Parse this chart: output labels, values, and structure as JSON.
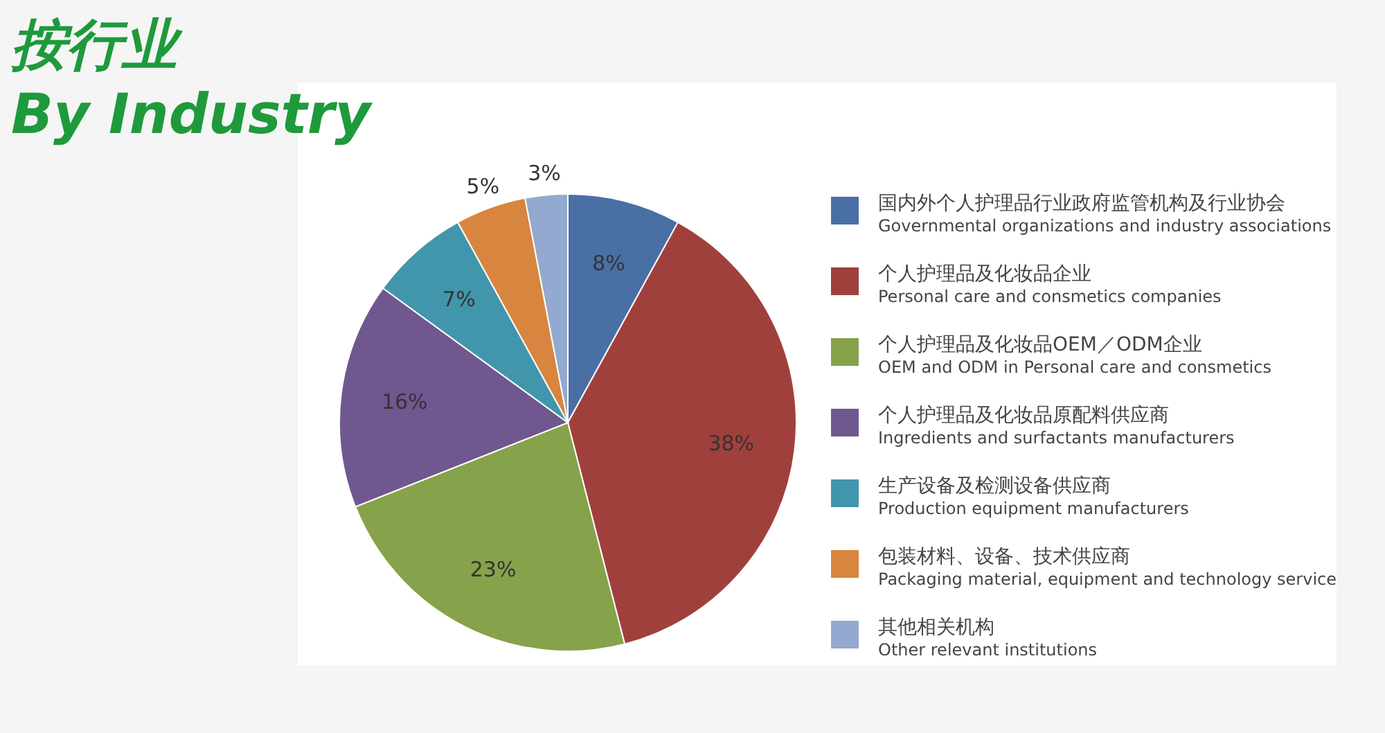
{
  "chart_data": {
    "type": "pie",
    "title": "按行业",
    "subtitle": "By Industry",
    "categories": [
      "国内外个人护理品行业政府监管机构及行业协会\nGovernmental organizations and industry associations",
      "个人护理品及化妆品企业\nPersonal care and consmetics companies",
      "个人护理品及化妆品OEM／ODM企业\nOEM and ODM in Personal care and consmetics",
      "个人护理品及化妆品原配料供应商\nIngredients and surfactants manufacturers",
      "生产设备及检测设备供应商\nProduction equipment manufacturers",
      "包装材料、设备、技术供应商\nPackaging material, equipment and technology service",
      "其他相关机构\nOther relevant institutions"
    ],
    "values": [
      8,
      38,
      23,
      16,
      7,
      5,
      3
    ],
    "colors": [
      "#4a6fa5",
      "#a0403d",
      "#86a24a",
      "#70578f",
      "#4196ab",
      "#d8853f",
      "#93a9cf"
    ],
    "value_labels": [
      "8%",
      "38%",
      "23%",
      "16%",
      "7%",
      "5%",
      "3%"
    ],
    "legend": "right"
  }
}
